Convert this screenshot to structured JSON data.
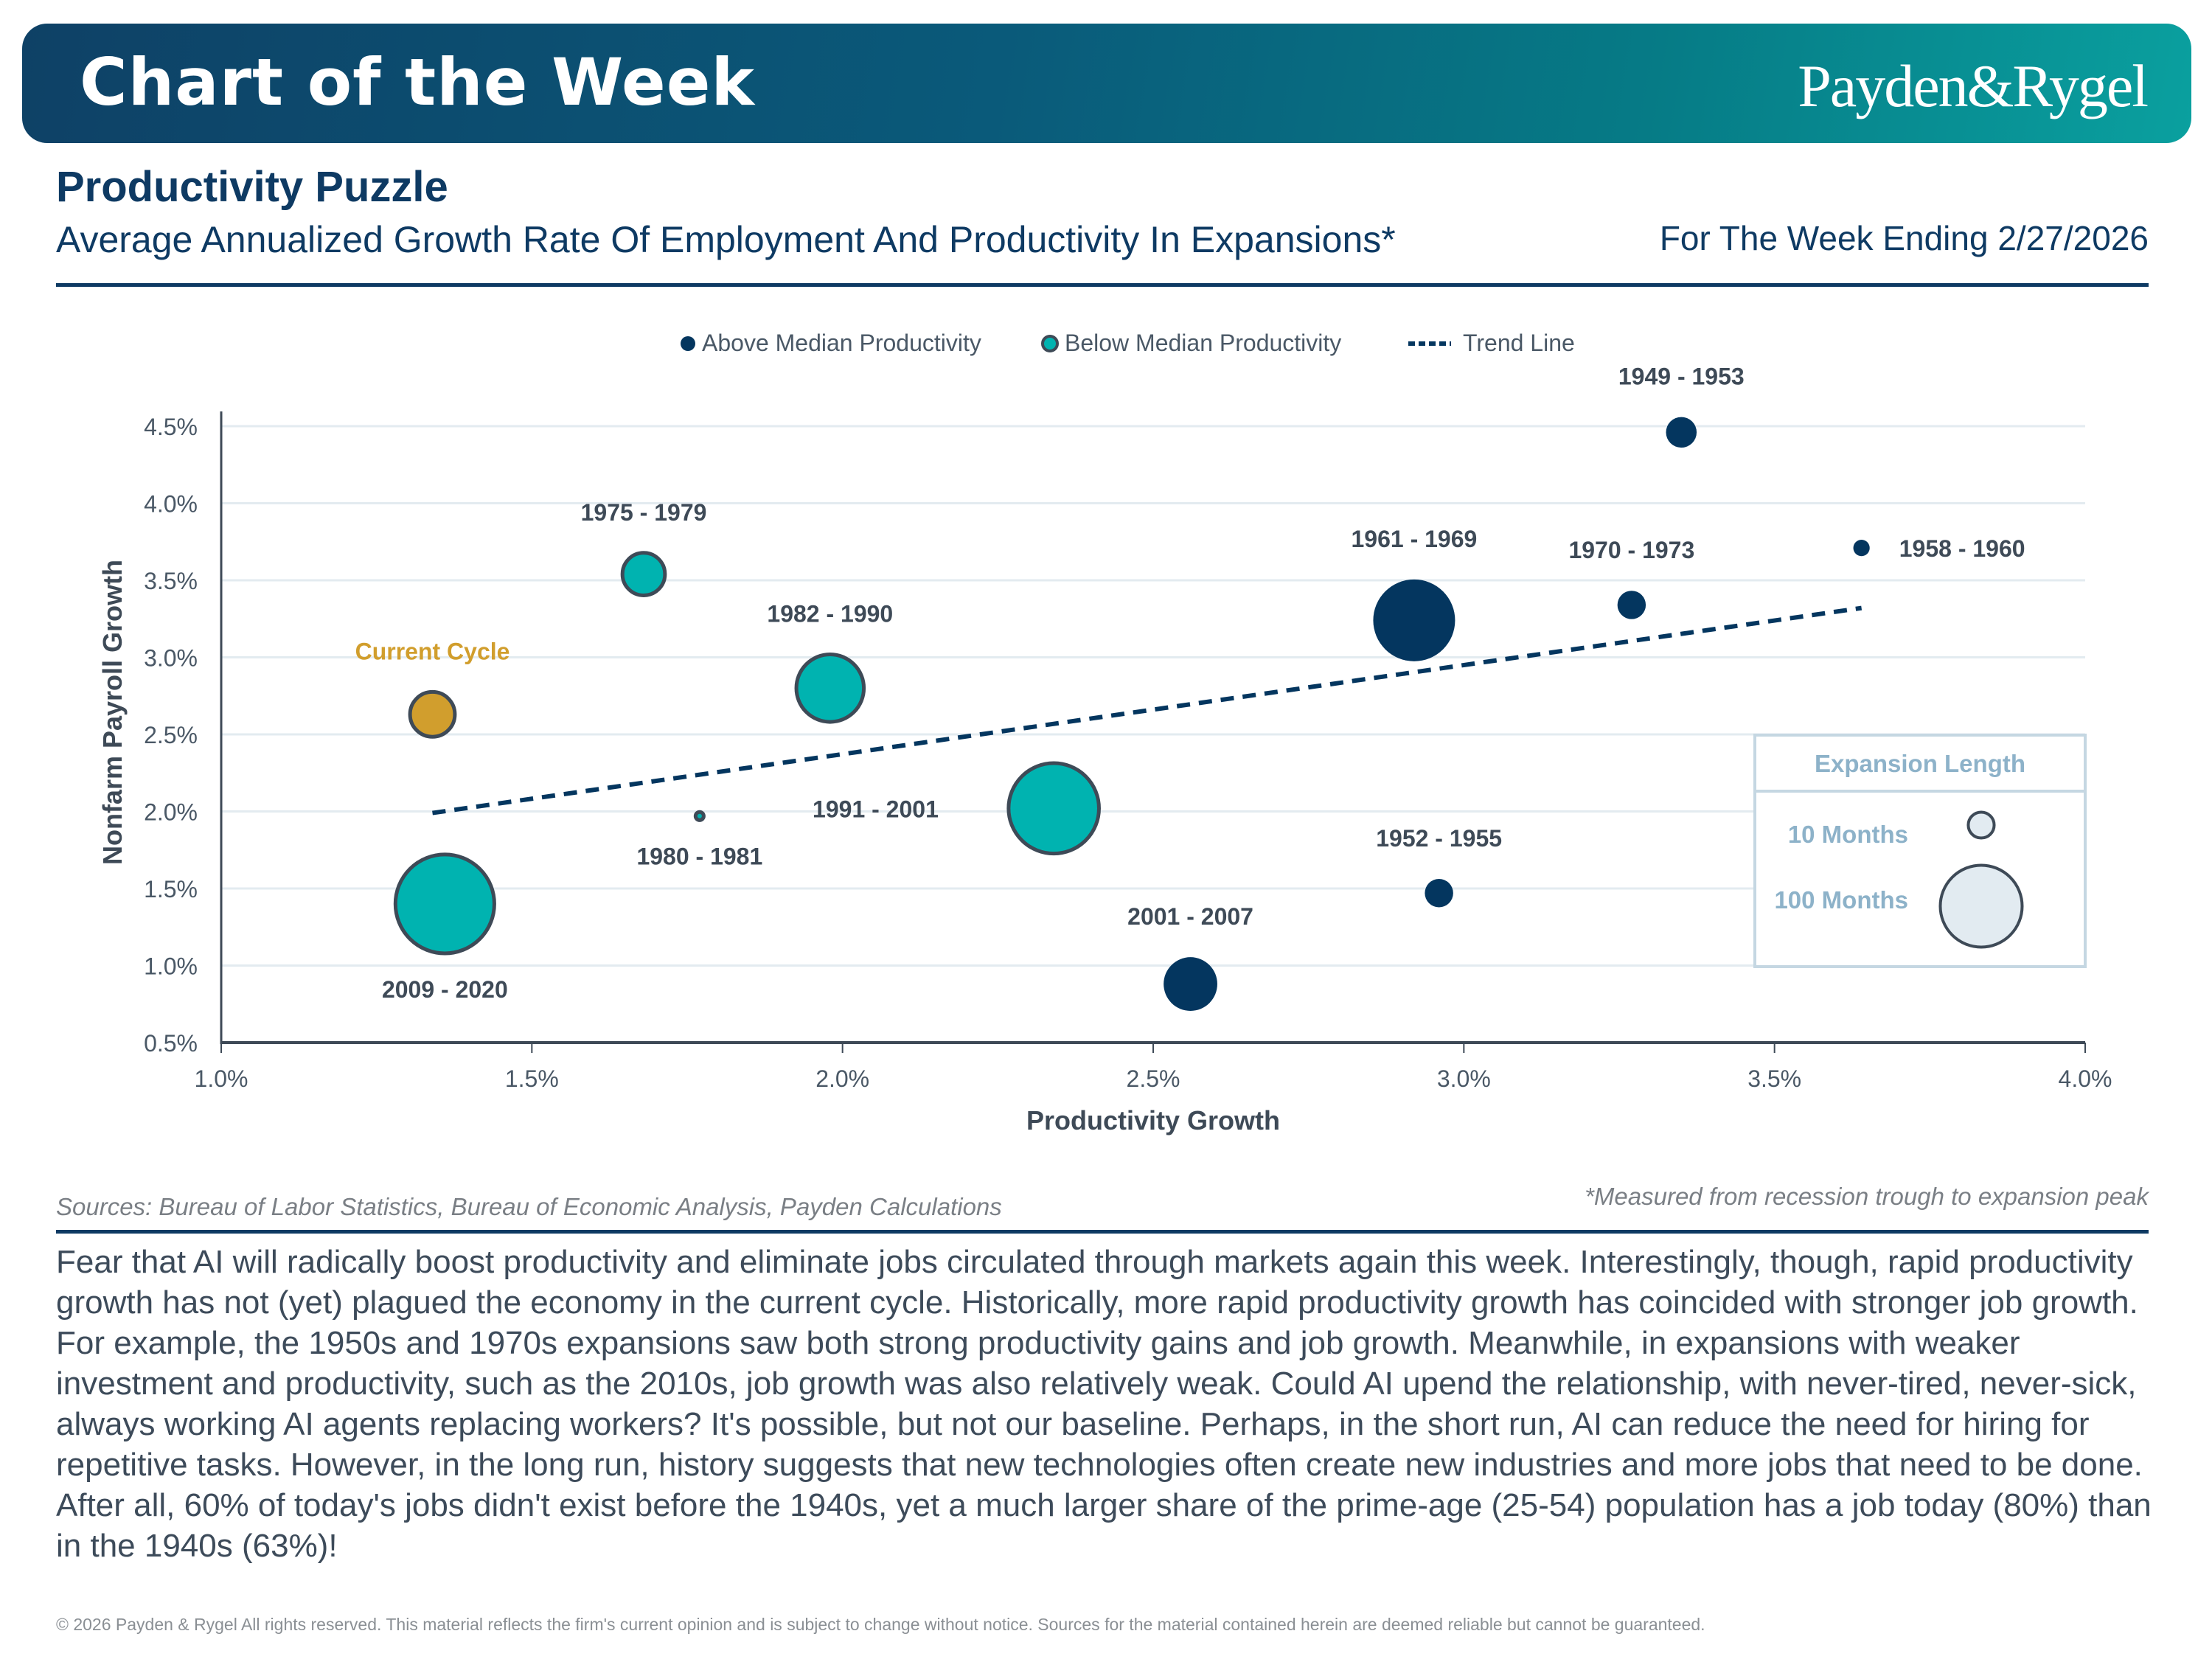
{
  "header": {
    "banner_title": "Chart of the Week",
    "logo": "Payden&Rygel",
    "title": "Productivity Puzzle",
    "subtitle": "Average Annualized Growth Rate Of Employment And Productivity In Expansions*",
    "date": "For The Week Ending 2/27/2026"
  },
  "colors": {
    "navy": "#04365f",
    "teal": "#00b3b0",
    "gold": "#d19e2d",
    "outline": "#3e4a57",
    "grid": "#e3ebf0",
    "legend_box": "#c5d7e2",
    "legend_text": "#8db2c9"
  },
  "chart_data": {
    "type": "scatter",
    "title": "Average Annualized Growth Rate Of Employment And Productivity In Expansions*",
    "xlabel": "Productivity Growth",
    "ylabel": "Nonfarm Payroll Growth",
    "xlim": [
      1.0,
      4.0
    ],
    "ylim": [
      0.5,
      4.5
    ],
    "x_ticks": [
      "1.0%",
      "1.5%",
      "2.0%",
      "2.5%",
      "3.0%",
      "3.5%",
      "4.0%"
    ],
    "y_ticks": [
      "0.5%",
      "1.0%",
      "1.5%",
      "2.0%",
      "2.5%",
      "3.0%",
      "3.5%",
      "4.0%",
      "4.5%"
    ],
    "grid": true,
    "legend": {
      "placement": "top-center",
      "entries": [
        {
          "label": "Above Median Productivity",
          "kind": "navy"
        },
        {
          "label": "Below Median Productivity",
          "kind": "teal"
        },
        {
          "label": "Trend Line",
          "kind": "dashed"
        }
      ]
    },
    "size_legend": {
      "title": "Expansion Length",
      "placement": "bottom-right",
      "items": [
        {
          "label": "10 Months",
          "months": 10
        },
        {
          "label": "100 Months",
          "months": 100
        }
      ]
    },
    "points": [
      {
        "label": "Current Cycle",
        "x": 1.34,
        "y": 2.63,
        "months": 30,
        "group": "current",
        "label_pos": "above"
      },
      {
        "label": "2009 - 2020",
        "x": 1.36,
        "y": 1.4,
        "months": 146,
        "group": "below",
        "label_pos": "below"
      },
      {
        "label": "1975 - 1979",
        "x": 1.68,
        "y": 3.54,
        "months": 27,
        "group": "below",
        "label_pos": "above"
      },
      {
        "label": "1980 - 1981",
        "x": 1.77,
        "y": 1.97,
        "months": 1,
        "group": "below",
        "label_pos": "below"
      },
      {
        "label": "1982 - 1990",
        "x": 1.98,
        "y": 2.8,
        "months": 68,
        "group": "below",
        "label_pos": "above"
      },
      {
        "label": "1991 - 2001",
        "x": 2.34,
        "y": 2.02,
        "months": 122,
        "group": "below",
        "label_pos": "left"
      },
      {
        "label": "2001 - 2007",
        "x": 2.56,
        "y": 0.88,
        "months": 43,
        "group": "above",
        "label_pos": "above"
      },
      {
        "label": "1961 - 1969",
        "x": 2.92,
        "y": 3.24,
        "months": 100,
        "group": "above",
        "label_pos": "above"
      },
      {
        "label": "1952 - 1955",
        "x": 2.96,
        "y": 1.47,
        "months": 12,
        "group": "above",
        "label_pos": "above"
      },
      {
        "label": "1970 - 1973",
        "x": 3.27,
        "y": 3.34,
        "months": 12,
        "group": "above",
        "label_pos": "above"
      },
      {
        "label": "1949 - 1953",
        "x": 3.35,
        "y": 4.46,
        "months": 14,
        "group": "above",
        "label_pos": "above"
      },
      {
        "label": "1958 - 1960",
        "x": 3.64,
        "y": 3.71,
        "months": 4,
        "group": "above",
        "label_pos": "right"
      }
    ],
    "trend_line": {
      "x": [
        1.34,
        3.64
      ],
      "y": [
        1.99,
        3.32
      ]
    }
  },
  "footer": {
    "sources": "Sources: Bureau of Labor Statistics, Bureau of Economic Analysis, Payden Calculations",
    "footnote": "*Measured from recession trough to expansion peak",
    "body": "Fear that AI will radically boost productivity and eliminate jobs circulated through markets again this week. Interestingly, though, rapid productivity growth has not (yet) plagued the economy in the current cycle. Historically, more rapid productivity growth has coincided with stronger job growth. For example, the 1950s and 1970s expansions saw both strong productivity gains and job growth. Meanwhile, in expansions with weaker investment and productivity, such as the 2010s, job growth was also relatively weak. Could AI upend the relationship, with never-tired, never-sick, always working AI agents replacing workers? It's possible, but not our baseline. Perhaps, in the short run, AI can reduce the need for hiring for repetitive tasks. However, in the long run, history suggests that new technologies often create new industries and more jobs that need to be done. After all, 60% of today's jobs didn't exist before the 1940s, yet a much larger share of the prime-age (25-54) population has a job today (80%) than in the 1940s (63%)!",
    "disclaimer": "© 2026 Payden & Rygel All rights reserved. This material reflects the firm's current opinion and is subject to change without notice. Sources for the material contained herein are deemed reliable but cannot be guaranteed."
  }
}
